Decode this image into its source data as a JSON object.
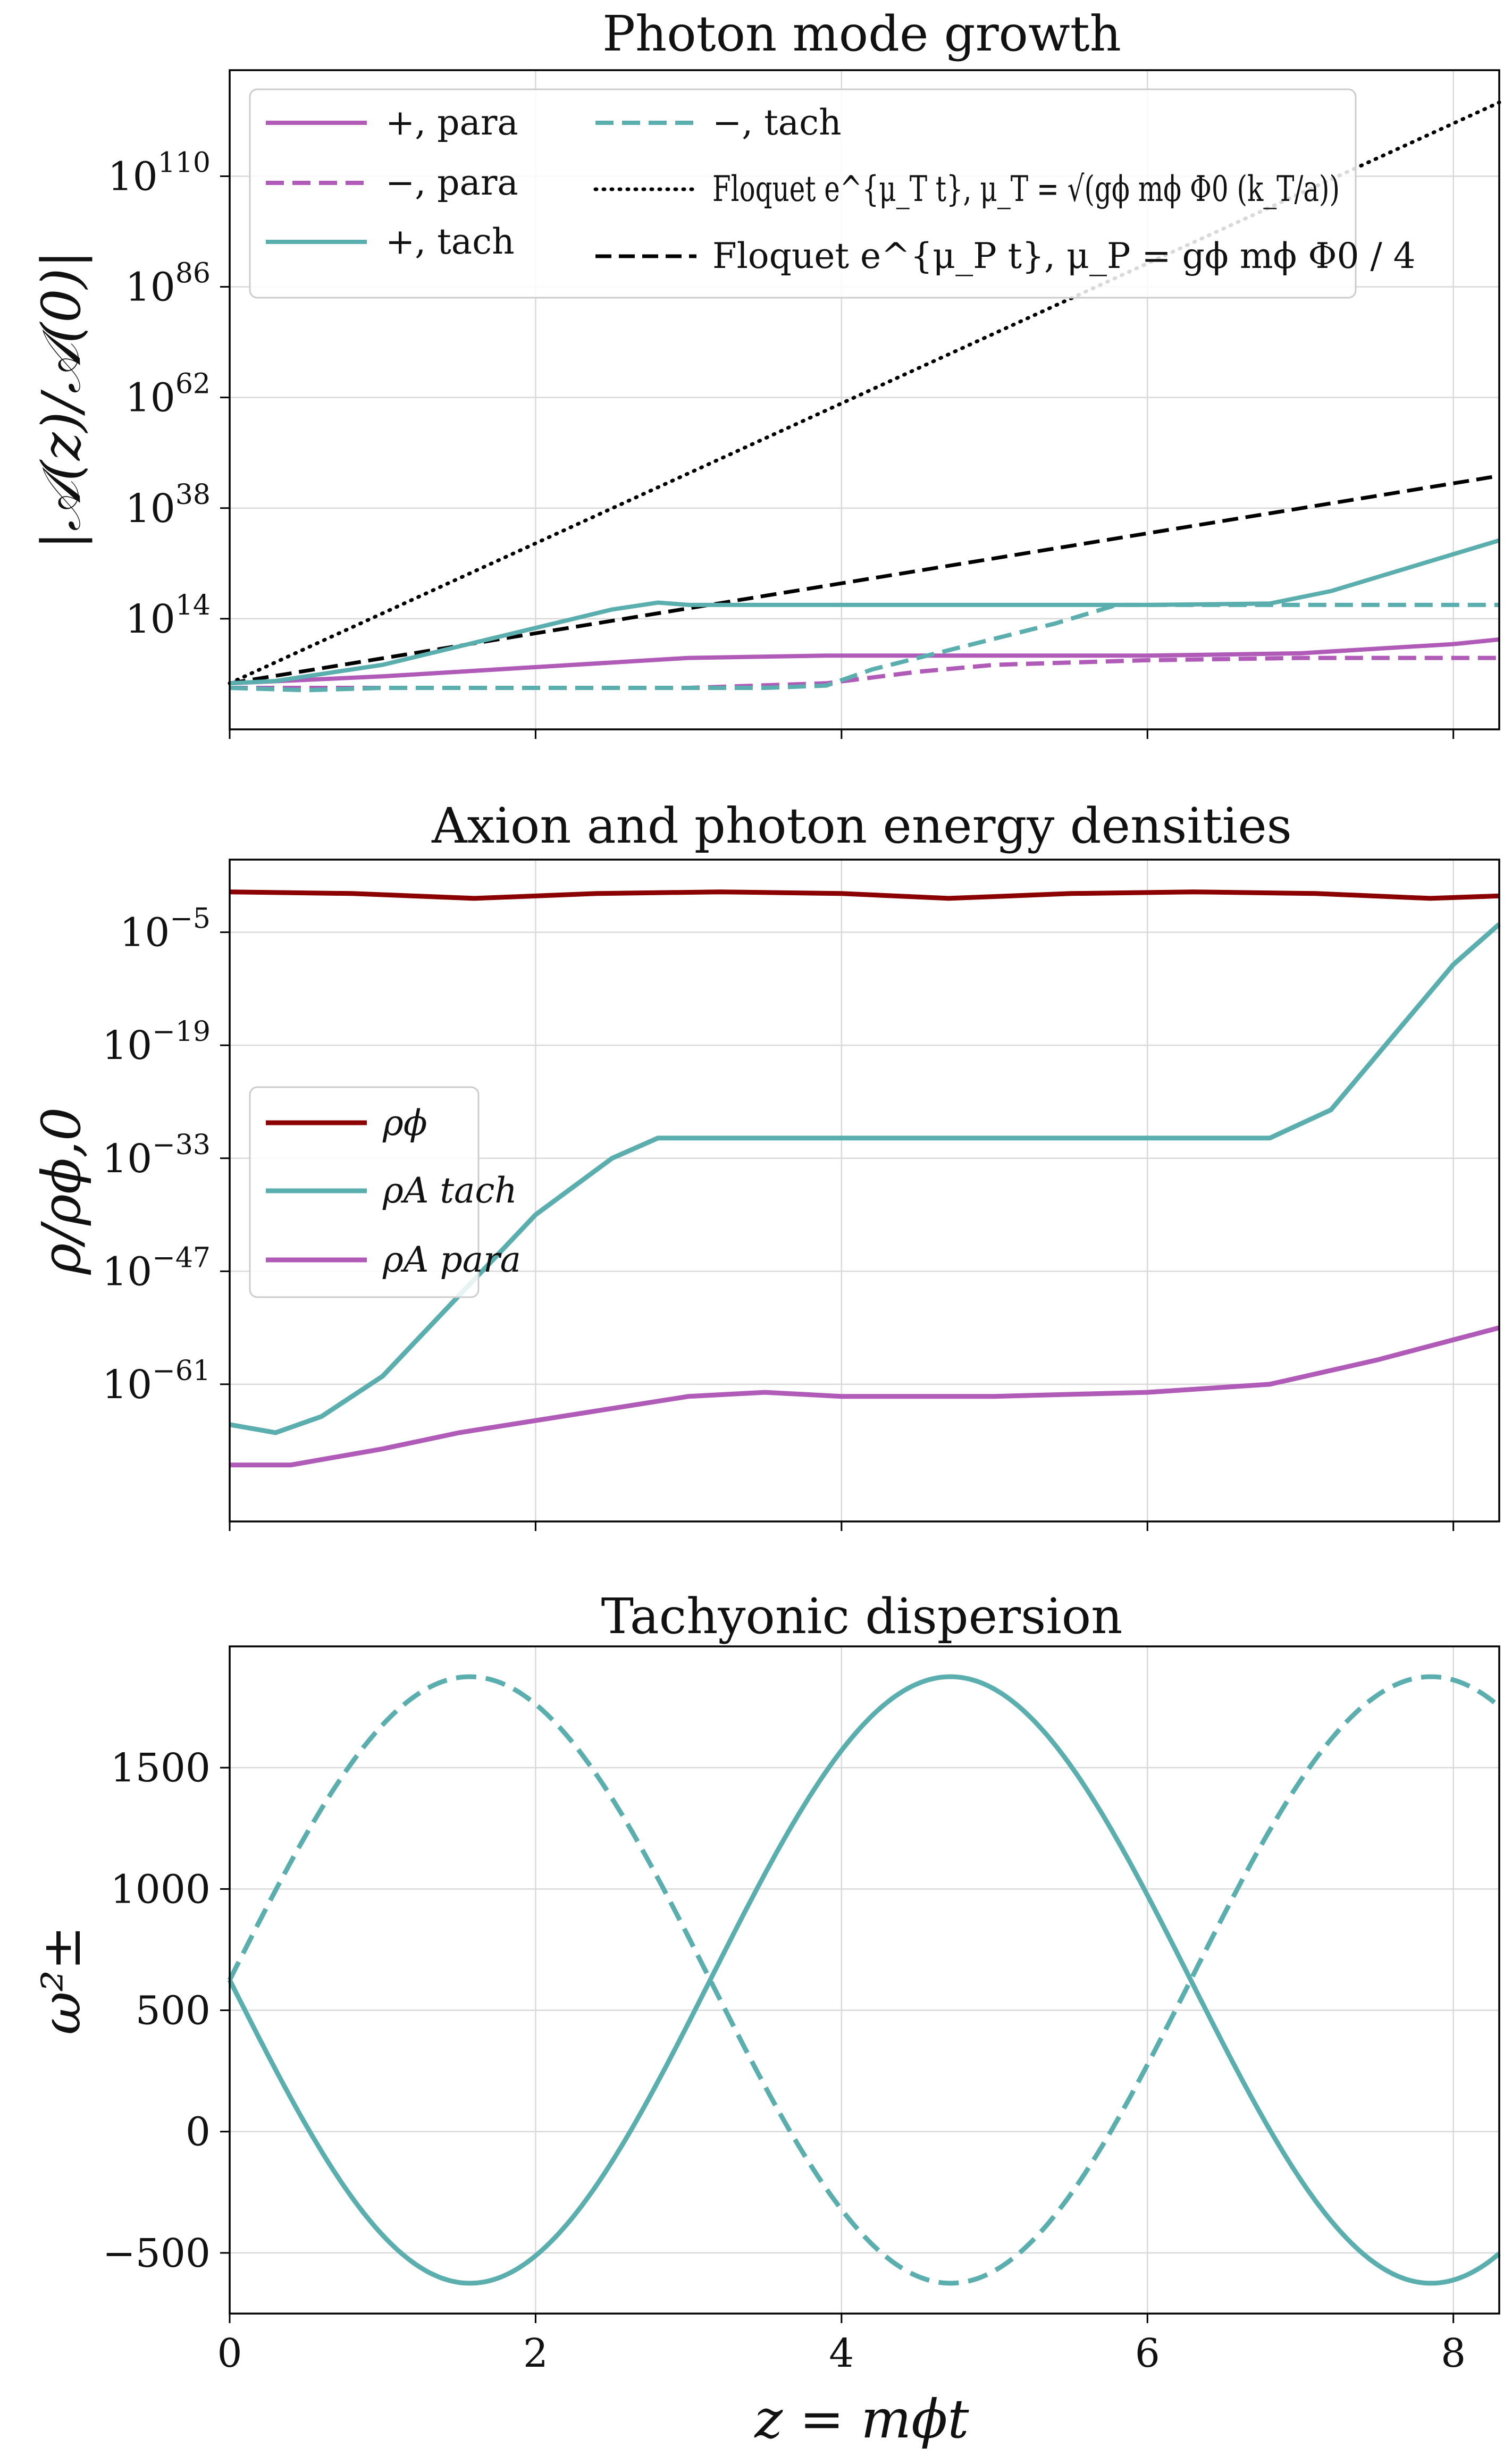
{
  "colors": {
    "para": "#b05bb8",
    "tach": "#5aaeae",
    "rho_phi": "#8b0000",
    "floquet": "#000000",
    "grid": "#d9d9d9"
  },
  "xlabel": "z = mϕt",
  "chart_data": [
    {
      "type": "line",
      "title": "Photon mode growth",
      "ylabel": "|𝒜(z)/𝒜(0)|",
      "y_scale": "log",
      "xlim": [
        0,
        8.3
      ],
      "ylim_log10": [
        -10,
        133
      ],
      "yticks": [
        {
          "base": "10",
          "exp": "110",
          "value_log10": 110
        },
        {
          "base": "10",
          "exp": "86",
          "value_log10": 86
        },
        {
          "base": "10",
          "exp": "62",
          "value_log10": 62
        },
        {
          "base": "10",
          "exp": "38",
          "value_log10": 38
        },
        {
          "base": "10",
          "exp": "14",
          "value_log10": 14
        }
      ],
      "xticks": [
        0,
        2,
        4,
        6,
        8
      ],
      "show_xtick_labels": false,
      "grid": true,
      "legend_placement": "top-left (two columns)",
      "legend": [
        {
          "label": "+, para",
          "series": "plus_para"
        },
        {
          "label": "−, para",
          "series": "minus_para"
        },
        {
          "label": "+, tach",
          "series": "plus_tach"
        },
        {
          "label": "−, tach",
          "series": "minus_tach"
        },
        {
          "label": "Floquet e^{μ_T t}, μ_T = √(gϕ mϕ Φ0 (k_T/a))",
          "series": "floquet_T"
        },
        {
          "label": "Floquet e^{μ_P t}, μ_P = gϕ mϕ Φ0 / 4",
          "series": "floquet_P"
        }
      ],
      "series": [
        {
          "id": "floquet_T",
          "color": "#000000",
          "style": "dotted",
          "x": [
            0,
            8.3
          ],
          "y_log10": [
            0,
            126
          ]
        },
        {
          "id": "floquet_P",
          "color": "#000000",
          "style": "dashed",
          "x": [
            0,
            8.3
          ],
          "y_log10": [
            0,
            45
          ]
        },
        {
          "id": "plus_tach",
          "color": "#5aaeae",
          "style": "solid",
          "x": [
            0,
            0.3,
            0.6,
            1.0,
            1.5,
            2.0,
            2.5,
            2.8,
            3.0,
            4.0,
            5.0,
            6.0,
            6.8,
            7.2,
            7.6,
            8.0,
            8.3
          ],
          "y_log10": [
            0,
            0.5,
            2,
            4,
            8,
            12,
            16,
            17.5,
            17,
            17,
            17,
            17,
            17.3,
            20,
            24,
            28,
            31
          ]
        },
        {
          "id": "minus_tach",
          "color": "#5aaeae",
          "style": "dashed",
          "x": [
            0,
            0.5,
            1.0,
            2.0,
            3.0,
            3.5,
            3.9,
            4.2,
            4.8,
            5.4,
            5.8,
            6.0,
            7.0,
            8.0,
            8.3
          ],
          "y_log10": [
            -1,
            -1.5,
            -1,
            -1,
            -1,
            -1,
            -0.5,
            3,
            8,
            13,
            17,
            17,
            17,
            17,
            17
          ]
        },
        {
          "id": "plus_para",
          "color": "#b05bb8",
          "style": "solid",
          "x": [
            0,
            1.0,
            2.0,
            3.0,
            3.9,
            4.0,
            5.0,
            6.0,
            7.0,
            8.0,
            8.3
          ],
          "y_log10": [
            0,
            1.5,
            3.5,
            5.5,
            6,
            6,
            6,
            6,
            6.5,
            8.5,
            9.5
          ]
        },
        {
          "id": "minus_para",
          "color": "#b05bb8",
          "style": "dashed",
          "x": [
            0,
            1.0,
            2.0,
            3.0,
            3.9,
            4.5,
            5.0,
            6.0,
            7.0,
            8.0,
            8.3
          ],
          "y_log10": [
            -1,
            -1,
            -1,
            -1,
            0,
            2.5,
            4,
            5,
            5.5,
            5.5,
            5.5
          ]
        }
      ]
    },
    {
      "type": "line",
      "title": "Axion and photon energy densities",
      "ylabel": "ρ/ρϕ,0",
      "y_scale": "log",
      "xlim": [
        0,
        8.3
      ],
      "ylim_log10": [
        -78,
        4
      ],
      "yticks": [
        {
          "base": "10",
          "exp": "−5",
          "value_log10": -5
        },
        {
          "base": "10",
          "exp": "−19",
          "value_log10": -19
        },
        {
          "base": "10",
          "exp": "−33",
          "value_log10": -33
        },
        {
          "base": "10",
          "exp": "−47",
          "value_log10": -47
        },
        {
          "base": "10",
          "exp": "−61",
          "value_log10": -61
        }
      ],
      "xticks": [
        0,
        2,
        4,
        6,
        8
      ],
      "show_xtick_labels": false,
      "grid": true,
      "legend_placement": "center-left",
      "legend": [
        {
          "label": "ρϕ",
          "series": "rho_phi"
        },
        {
          "label": "ρA tach",
          "series": "rho_tach"
        },
        {
          "label": "ρA para",
          "series": "rho_para"
        }
      ],
      "series": [
        {
          "id": "rho_phi",
          "color": "#8b0000",
          "style": "solid",
          "x": [
            0,
            0.8,
            1.6,
            2.4,
            3.2,
            4.0,
            4.7,
            5.5,
            6.3,
            7.1,
            7.85,
            8.3
          ],
          "y_log10": [
            0,
            -0.2,
            -0.8,
            -0.2,
            0,
            -0.2,
            -0.8,
            -0.2,
            0,
            -0.2,
            -0.8,
            -0.5
          ]
        },
        {
          "id": "rho_tach",
          "color": "#5aaeae",
          "style": "solid",
          "x": [
            0,
            0.3,
            0.6,
            1.0,
            1.5,
            2.0,
            2.5,
            2.8,
            3.5,
            4.5,
            5.5,
            6.5,
            6.8,
            7.2,
            7.6,
            8.0,
            8.3
          ],
          "y_log10": [
            -66,
            -67,
            -65,
            -60,
            -50,
            -40,
            -33,
            -30.5,
            -30.5,
            -30.5,
            -30.5,
            -30.5,
            -30.5,
            -27,
            -18,
            -9,
            -4
          ]
        },
        {
          "id": "rho_para",
          "color": "#b05bb8",
          "style": "solid",
          "x": [
            0,
            0.4,
            1.0,
            1.5,
            2.0,
            2.5,
            3.0,
            3.5,
            4.0,
            5.0,
            6.0,
            6.8,
            7.5,
            8.3
          ],
          "y_log10": [
            -71,
            -71,
            -69,
            -67,
            -65.5,
            -64,
            -62.5,
            -62,
            -62.5,
            -62.5,
            -62,
            -61,
            -58,
            -54
          ]
        }
      ]
    },
    {
      "type": "line",
      "title": "Tachyonic dispersion",
      "ylabel": "ω²±",
      "y_scale": "linear",
      "xlim": [
        0,
        8.3
      ],
      "ylim": [
        -750,
        2000
      ],
      "yticks": [
        {
          "label": "1500",
          "value": 1500
        },
        {
          "label": "1000",
          "value": 1000
        },
        {
          "label": "500",
          "value": 500
        },
        {
          "label": "0",
          "value": 0
        },
        {
          "label": "−500",
          "value": -500
        }
      ],
      "xticks": [
        0,
        2,
        4,
        6,
        8
      ],
      "xtick_labels": [
        "0",
        "2",
        "4",
        "6",
        "8"
      ],
      "show_xtick_labels": true,
      "grid": true,
      "series": [
        {
          "id": "omega_plus",
          "color": "#5aaeae",
          "style": "solid",
          "function": "625 - 1250*sin(z)"
        },
        {
          "id": "omega_minus",
          "color": "#5aaeae",
          "style": "dashed",
          "function": "625 + 1250*sin(z)"
        }
      ]
    }
  ]
}
